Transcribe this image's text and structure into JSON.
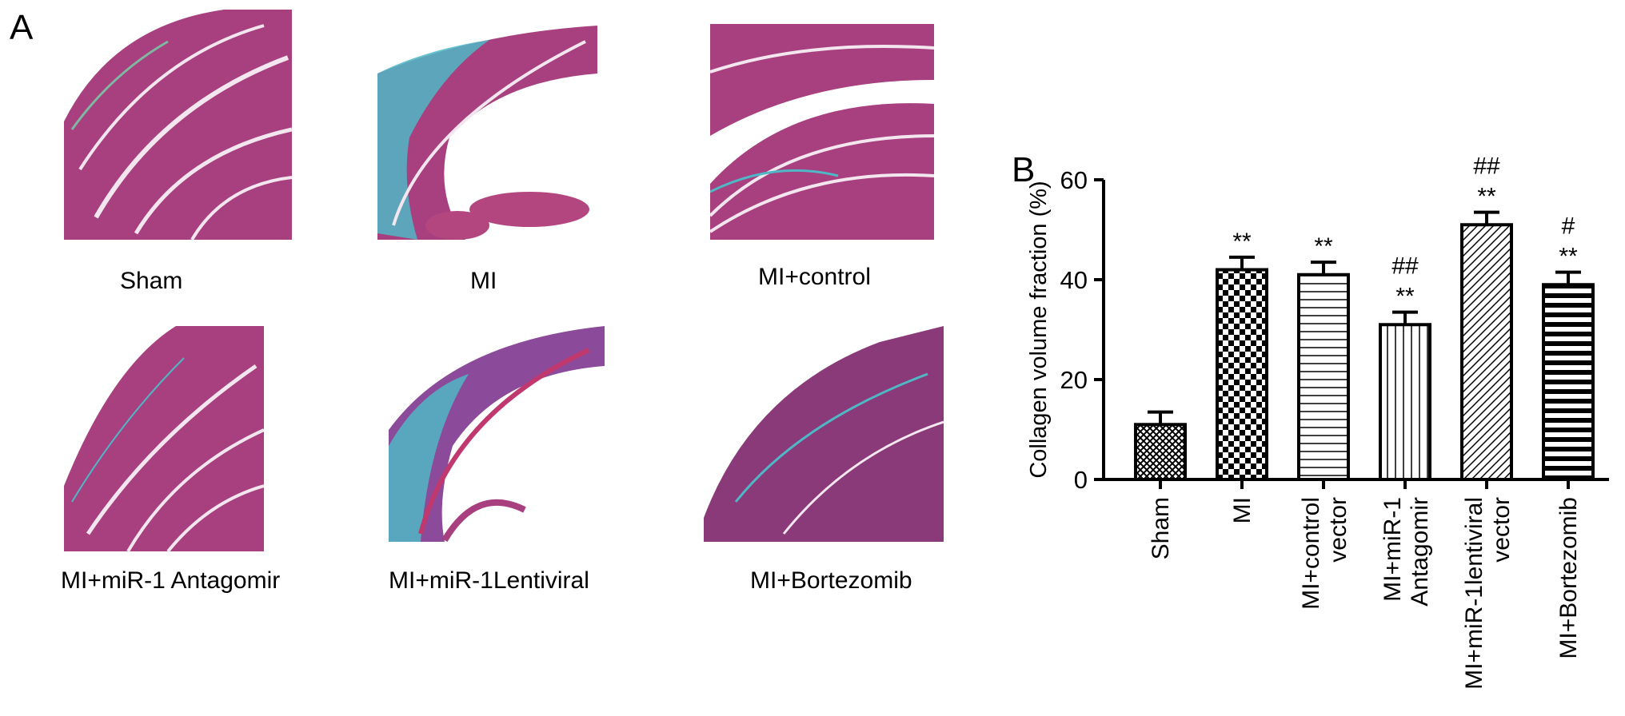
{
  "panel_a": {
    "letter": "A",
    "images": [
      {
        "caption": "Sham"
      },
      {
        "caption": "MI"
      },
      {
        "caption": "MI+control"
      },
      {
        "caption": "MI+miR-1 Antagomir"
      },
      {
        "caption": "MI+miR-1Lentiviral"
      },
      {
        "caption": "MI+Bortezomib"
      }
    ]
  },
  "panel_b": {
    "letter": "B"
  },
  "colors": {
    "stain_red": "#a8407f",
    "stain_blue": "#4fb7c6",
    "bar_edge": "#000000"
  },
  "chart_data": {
    "type": "bar",
    "title": "",
    "xlabel": "",
    "ylabel": "Collagen volume fraction (%)",
    "ylim": [
      0,
      60
    ],
    "yticks": [
      0,
      20,
      40,
      60
    ],
    "grid": false,
    "categories": [
      [
        "Sham"
      ],
      [
        "MI"
      ],
      [
        "MI+control",
        "vector"
      ],
      [
        "MI+miR-1",
        "Antagomir"
      ],
      [
        "MI+miR-1lentiviral",
        "vector"
      ],
      [
        "MI+Bortezomib"
      ]
    ],
    "values": [
      11,
      42,
      41,
      31,
      51,
      39
    ],
    "errors": [
      2.5,
      2.5,
      2.5,
      2.5,
      2.5,
      2.5
    ],
    "patterns": [
      "crosshatch",
      "checker",
      "horizontal",
      "vertical",
      "diagonal",
      "horizontal-thick"
    ],
    "annotations": [
      {
        "bar": 1,
        "labels": [
          "**"
        ]
      },
      {
        "bar": 2,
        "labels": [
          "**"
        ]
      },
      {
        "bar": 3,
        "labels": [
          "**",
          "##"
        ]
      },
      {
        "bar": 4,
        "labels": [
          "**",
          "##"
        ]
      },
      {
        "bar": 5,
        "labels": [
          "**",
          "#"
        ]
      }
    ]
  }
}
